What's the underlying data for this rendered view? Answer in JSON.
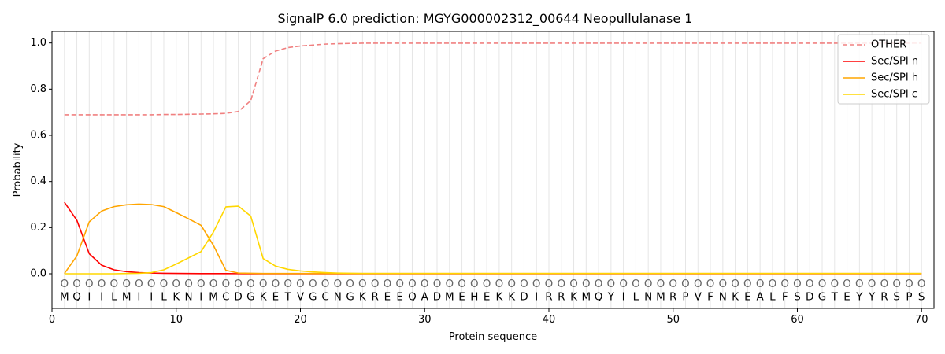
{
  "chart_data": {
    "type": "line",
    "title": "SignalP 6.0 prediction: MGYG000002312_00644 Neopullulanase 1",
    "xlabel": "Protein sequence",
    "ylabel": "Probability",
    "xlim": [
      0,
      71
    ],
    "ylim": [
      -0.15,
      1.05
    ],
    "xticks": [
      "0",
      "10",
      "20",
      "30",
      "40",
      "50",
      "60",
      "70"
    ],
    "yticks": [
      "0.0",
      "0.2",
      "0.4",
      "0.6",
      "0.8",
      "1.0"
    ],
    "grid": "vertical at each residue",
    "legend_position": "top-right",
    "sequence": [
      "M",
      "Q",
      "I",
      "I",
      "L",
      "M",
      "I",
      "I",
      "L",
      "K",
      "N",
      "I",
      "M",
      "C",
      "D",
      "G",
      "K",
      "E",
      "T",
      "V",
      "G",
      "C",
      "N",
      "G",
      "K",
      "R",
      "E",
      "E",
      "Q",
      "A",
      "D",
      "M",
      "E",
      "H",
      "E",
      "K",
      "K",
      "D",
      "I",
      "R",
      "R",
      "K",
      "M",
      "Q",
      "Y",
      "I",
      "L",
      "N",
      "M",
      "R",
      "P",
      "V",
      "F",
      "N",
      "K",
      "E",
      "A",
      "L",
      "F",
      "S",
      "D",
      "G",
      "T",
      "E",
      "Y",
      "Y",
      "R",
      "S",
      "P",
      "S"
    ],
    "region_labels": [
      "O",
      "O",
      "O",
      "O",
      "O",
      "O",
      "O",
      "O",
      "O",
      "O",
      "O",
      "O",
      "O",
      "O",
      "O",
      "O",
      "O",
      "O",
      "O",
      "O",
      "O",
      "O",
      "O",
      "O",
      "O",
      "O",
      "O",
      "O",
      "O",
      "O",
      "O",
      "O",
      "O",
      "O",
      "O",
      "O",
      "O",
      "O",
      "O",
      "O",
      "O",
      "O",
      "O",
      "O",
      "O",
      "O",
      "O",
      "O",
      "O",
      "O",
      "O",
      "O",
      "O",
      "O",
      "O",
      "O",
      "O",
      "O",
      "O",
      "O",
      "O",
      "O",
      "O",
      "O",
      "O",
      "O",
      "O",
      "O",
      "O",
      "O"
    ],
    "series": [
      {
        "name": "OTHER",
        "color": "#f08080",
        "dash": "dashed",
        "values": [
          0.689,
          0.689,
          0.689,
          0.689,
          0.689,
          0.689,
          0.689,
          0.689,
          0.69,
          0.69,
          0.691,
          0.692,
          0.693,
          0.695,
          0.703,
          0.75,
          0.932,
          0.965,
          0.98,
          0.987,
          0.991,
          0.995,
          0.997,
          0.998,
          0.999,
          0.999,
          0.999,
          0.999,
          0.999,
          0.999,
          0.999,
          0.999,
          0.999,
          0.999,
          0.999,
          0.999,
          0.999,
          0.999,
          0.999,
          0.999,
          0.999,
          0.999,
          0.999,
          0.999,
          0.999,
          0.999,
          0.999,
          0.999,
          0.999,
          0.999,
          0.999,
          0.999,
          0.999,
          0.999,
          0.999,
          0.999,
          0.999,
          0.999,
          0.999,
          0.999,
          0.999,
          0.999,
          0.999,
          0.999,
          0.999,
          0.999,
          0.999,
          0.999,
          0.999,
          0.999
        ]
      },
      {
        "name": "Sec/SPI n",
        "color": "#ff0000",
        "dash": "solid",
        "values": [
          0.31,
          0.232,
          0.087,
          0.037,
          0.017,
          0.009,
          0.005,
          0.003,
          0.002,
          0.0015,
          0.001,
          0.0008,
          0.0006,
          0.0005,
          0.0004,
          0.0003,
          0.0003,
          0.0002,
          0.0002,
          0.0002,
          0.0001,
          0.0001,
          0.0001,
          0.0001,
          0.0001,
          0.0001,
          0.0001,
          0.0001,
          0.0001,
          0.0001,
          0.0001,
          0.0001,
          0.0001,
          0.0001,
          0.0001,
          0.0001,
          0.0001,
          0.0001,
          0.0001,
          0.0001,
          0.0001,
          0.0001,
          0.0001,
          0.0001,
          0.0001,
          0.0001,
          0.0001,
          0.0001,
          0.0001,
          0.0001,
          0.0001,
          0.0001,
          0.0001,
          0.0001,
          0.0001,
          0.0001,
          0.0001,
          0.0001,
          0.0001,
          0.0001,
          0.0001,
          0.0001,
          0.0001,
          0.0001,
          0.0001,
          0.0001,
          0.0001,
          0.0001,
          0.0001,
          0.0001
        ]
      },
      {
        "name": "Sec/SPI h",
        "color": "#ffa500",
        "dash": "solid",
        "values": [
          0.001,
          0.077,
          0.225,
          0.272,
          0.291,
          0.299,
          0.302,
          0.3,
          0.291,
          0.265,
          0.238,
          0.21,
          0.123,
          0.015,
          0.003,
          0.002,
          0.001,
          0.001,
          0.001,
          0.001,
          0.001,
          0.001,
          0.001,
          0.001,
          0.001,
          0.001,
          0.001,
          0.001,
          0.001,
          0.001,
          0.001,
          0.001,
          0.001,
          0.001,
          0.001,
          0.001,
          0.001,
          0.001,
          0.001,
          0.001,
          0.001,
          0.001,
          0.001,
          0.001,
          0.001,
          0.001,
          0.001,
          0.001,
          0.001,
          0.001,
          0.001,
          0.001,
          0.001,
          0.001,
          0.001,
          0.001,
          0.001,
          0.001,
          0.001,
          0.001,
          0.001,
          0.001,
          0.001,
          0.001,
          0.001,
          0.001,
          0.001,
          0.001,
          0.001,
          0.001
        ]
      },
      {
        "name": "Sec/SPI c",
        "color": "#ffd700",
        "dash": "solid",
        "values": [
          0.0,
          0.0,
          0.0,
          0.0,
          0.0,
          0.001,
          0.002,
          0.005,
          0.017,
          0.042,
          0.069,
          0.096,
          0.181,
          0.29,
          0.293,
          0.25,
          0.066,
          0.033,
          0.019,
          0.012,
          0.008,
          0.005,
          0.003,
          0.002,
          0.001,
          0.001,
          0.001,
          0.001,
          0.001,
          0.001,
          0.001,
          0.001,
          0.001,
          0.001,
          0.001,
          0.001,
          0.001,
          0.001,
          0.001,
          0.001,
          0.001,
          0.001,
          0.001,
          0.001,
          0.001,
          0.001,
          0.001,
          0.001,
          0.001,
          0.001,
          0.001,
          0.001,
          0.001,
          0.001,
          0.001,
          0.001,
          0.001,
          0.001,
          0.001,
          0.001,
          0.001,
          0.001,
          0.001,
          0.001,
          0.001,
          0.001,
          0.001,
          0.001,
          0.001,
          0.001
        ]
      }
    ]
  }
}
